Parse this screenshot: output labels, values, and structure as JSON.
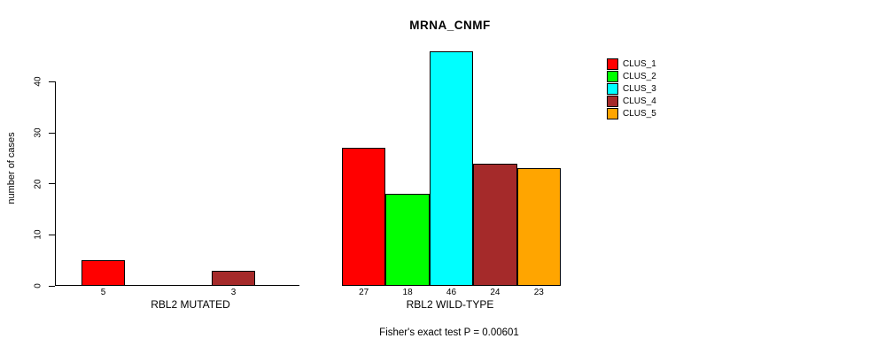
{
  "chart_data": {
    "type": "bar",
    "title": "MRNA_CNMF",
    "ylabel": "number of cases",
    "xlabel": "",
    "yticks": [
      0,
      10,
      20,
      30,
      40
    ],
    "ylim": [
      0,
      46
    ],
    "grid": false,
    "legend_position": "top-right",
    "bar_border_color": "#000000",
    "series": [
      {
        "name": "CLUS_1",
        "color": "#FF0000"
      },
      {
        "name": "CLUS_2",
        "color": "#00FF00"
      },
      {
        "name": "CLUS_3",
        "color": "#00FFFF"
      },
      {
        "name": "CLUS_4",
        "color": "#A52A2A"
      },
      {
        "name": "CLUS_5",
        "color": "#FFA500"
      }
    ],
    "groups": [
      {
        "label": "RBL2 MUTATED",
        "values": [
          5,
          0,
          0,
          3,
          0
        ],
        "value_labels": [
          "5",
          "",
          "",
          "3",
          ""
        ]
      },
      {
        "label": "RBL2 WILD-TYPE",
        "values": [
          27,
          18,
          46,
          24,
          23
        ],
        "value_labels": [
          "27",
          "18",
          "46",
          "24",
          "23"
        ]
      }
    ],
    "annotation": "Fisher's exact test P = 0.00601"
  }
}
